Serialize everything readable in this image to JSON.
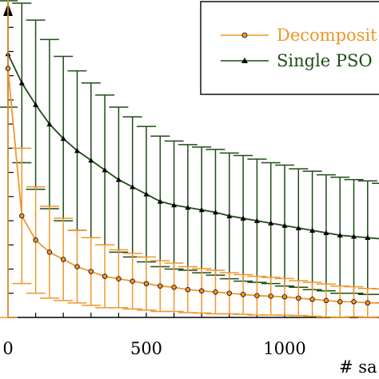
{
  "chart_data": {
    "type": "line",
    "xlabel": "# sa",
    "ylabel": "",
    "title": "",
    "xlim": [
      0,
      1350
    ],
    "ylim": [
      0,
      13
    ],
    "grid": false,
    "legend_position": "top-right",
    "x_ticks": [
      "0",
      "500",
      "1000"
    ],
    "x_tick_values": [
      0,
      500,
      1000
    ],
    "series": [
      {
        "name": "Decomposit",
        "color": "#f0962a",
        "marker": "circle",
        "x": [
          0,
          50,
          100,
          150,
          200,
          250,
          300,
          350,
          400,
          450,
          500,
          550,
          600,
          650,
          700,
          750,
          800,
          850,
          900,
          950,
          1000,
          1050,
          1100,
          1150,
          1200,
          1250,
          1300,
          1350
        ],
        "y": [
          10.3,
          4.2,
          3.2,
          2.7,
          2.4,
          2.1,
          1.9,
          1.7,
          1.6,
          1.5,
          1.4,
          1.3,
          1.25,
          1.15,
          1.1,
          1.05,
          1.0,
          0.95,
          0.9,
          0.88,
          0.85,
          0.8,
          0.75,
          0.7,
          0.65,
          0.65,
          0.6,
          0.6
        ],
        "err": [
          10.3,
          2.8,
          2.2,
          1.9,
          1.7,
          1.5,
          1.4,
          1.3,
          1.2,
          1.15,
          1.1,
          1.05,
          1.0,
          0.95,
          0.92,
          0.9,
          0.85,
          0.82,
          0.8,
          0.78,
          0.76,
          0.72,
          0.7,
          0.68,
          0.65,
          0.62,
          0.6,
          0.58
        ]
      },
      {
        "name": "Single PSO",
        "color": "#1d4c14",
        "marker": "triangle",
        "x": [
          0,
          50,
          100,
          150,
          200,
          250,
          300,
          350,
          400,
          450,
          500,
          550,
          600,
          650,
          700,
          750,
          800,
          850,
          900,
          950,
          1000,
          1050,
          1100,
          1150,
          1200,
          1250,
          1300,
          1350
        ],
        "y": [
          10.9,
          9.7,
          8.8,
          8.0,
          7.4,
          6.9,
          6.5,
          6.1,
          5.7,
          5.4,
          5.1,
          4.8,
          4.65,
          4.55,
          4.45,
          4.35,
          4.2,
          4.1,
          4.0,
          3.9,
          3.8,
          3.7,
          3.6,
          3.5,
          3.4,
          3.35,
          3.3,
          3.25
        ],
        "err": [
          2.2,
          3.3,
          3.5,
          3.5,
          3.4,
          3.3,
          3.2,
          3.1,
          3.0,
          2.9,
          2.8,
          2.7,
          2.65,
          2.6,
          2.6,
          2.6,
          2.6,
          2.6,
          2.55,
          2.5,
          2.5,
          2.45,
          2.45,
          2.4,
          2.4,
          2.35,
          2.35,
          2.3
        ]
      }
    ]
  }
}
